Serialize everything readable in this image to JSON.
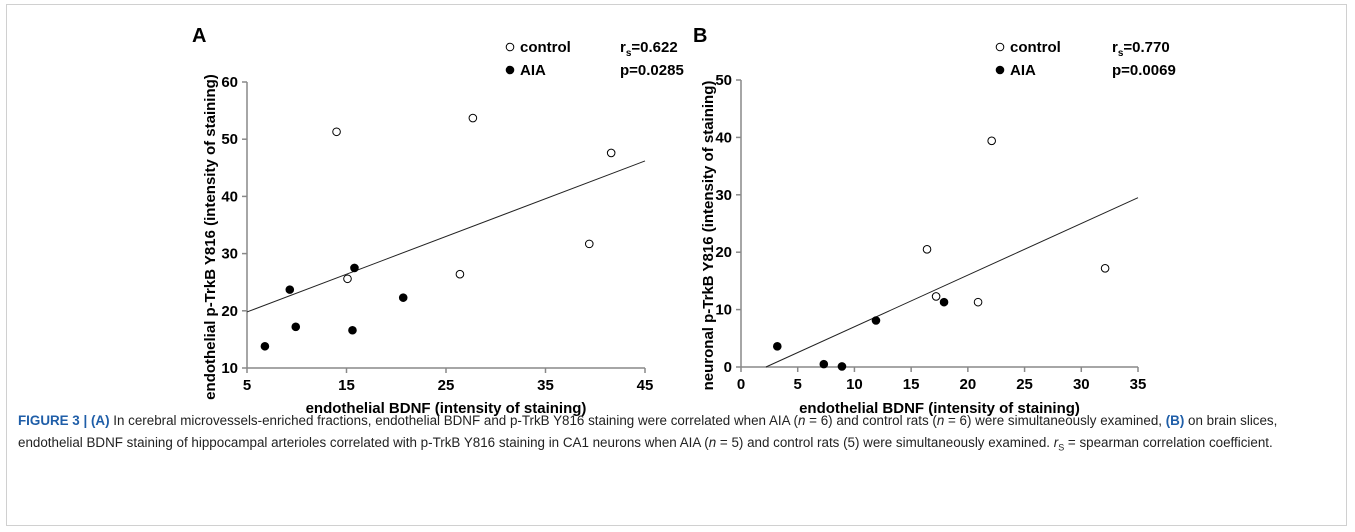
{
  "chart_data": [
    {
      "type": "scatter",
      "panel": "A",
      "xlabel": "endothelial BDNF (intensity of staining)",
      "ylabel": "endothelial p-TrkB Y816 (intensity of staining)",
      "xlim": [
        5,
        45
      ],
      "ylim": [
        10,
        60
      ],
      "xticks": [
        "5",
        "15",
        "25",
        "35",
        "45"
      ],
      "yticks": [
        "10",
        "20",
        "30",
        "40",
        "50",
        "60"
      ],
      "legend": {
        "placement": "top-right",
        "control": "control",
        "aia": "AIA"
      },
      "stats": {
        "rs_prefix": "r",
        "rs_sub": "s",
        "rs_value": "=0.622",
        "p": "p=0.0285"
      },
      "series": [
        {
          "name": "control",
          "marker": "open-circle",
          "x": [
            14.0,
            27.7,
            41.6,
            15.1,
            26.4,
            39.4
          ],
          "y": [
            51.3,
            53.7,
            47.6,
            25.6,
            26.4,
            31.7
          ]
        },
        {
          "name": "AIA",
          "marker": "filled-circle",
          "x": [
            9.3,
            15.8,
            9.9,
            20.7,
            15.6,
            6.8
          ],
          "y": [
            23.7,
            27.5,
            17.2,
            22.3,
            16.6,
            13.8
          ]
        }
      ],
      "trendline": {
        "x": [
          5,
          45
        ],
        "y": [
          19.8,
          46.2
        ]
      }
    },
    {
      "type": "scatter",
      "panel": "B",
      "xlabel": "endothelial BDNF (intensity of staining)",
      "ylabel": "neuronal p-TrkB Y816 (intensity of staining)",
      "xlim": [
        0,
        35
      ],
      "ylim": [
        0,
        50
      ],
      "xticks": [
        "0",
        "5",
        "10",
        "15",
        "20",
        "25",
        "30",
        "35"
      ],
      "yticks": [
        "0",
        "10",
        "20",
        "30",
        "40",
        "50"
      ],
      "legend": {
        "placement": "top-right",
        "control": "control",
        "aia": "AIA"
      },
      "stats": {
        "rs_prefix": "r",
        "rs_sub": "s",
        "rs_value": "=0.770",
        "p": "p=0.0069"
      },
      "series": [
        {
          "name": "control",
          "marker": "open-circle",
          "x": [
            22.1,
            16.4,
            17.2,
            20.9,
            32.1
          ],
          "y": [
            39.4,
            20.5,
            12.3,
            11.3,
            17.2
          ]
        },
        {
          "name": "AIA",
          "marker": "filled-circle",
          "x": [
            3.2,
            7.3,
            8.9,
            11.9,
            17.9
          ],
          "y": [
            3.6,
            0.5,
            0.1,
            8.1,
            11.3
          ]
        }
      ],
      "trendline": {
        "x": [
          2.2,
          35
        ],
        "y": [
          0,
          29.5
        ]
      }
    }
  ],
  "caption": {
    "figure_label": "FIGURE 3 | (A)",
    "t1": " In cerebral microvessels-enriched fractions, endothelial BDNF and p-TrkB Y816 staining were correlated when AIA (",
    "n1": "n",
    "t2": " = 6) and control rats (",
    "n2": "n",
    "t3": " = 6) were simultaneously examined, ",
    "b_label": "(B)",
    "t4": " on brain slices, endothelial BDNF staining of hippocampal arterioles correlated with p-TrkB Y816 staining in CA1 neurons when AIA (",
    "n3": "n",
    "t5": " = 5) and control rats (5) were simultaneously examined. ",
    "r": "r",
    "s": "S",
    "t6": " = spearman correlation coefficient."
  }
}
